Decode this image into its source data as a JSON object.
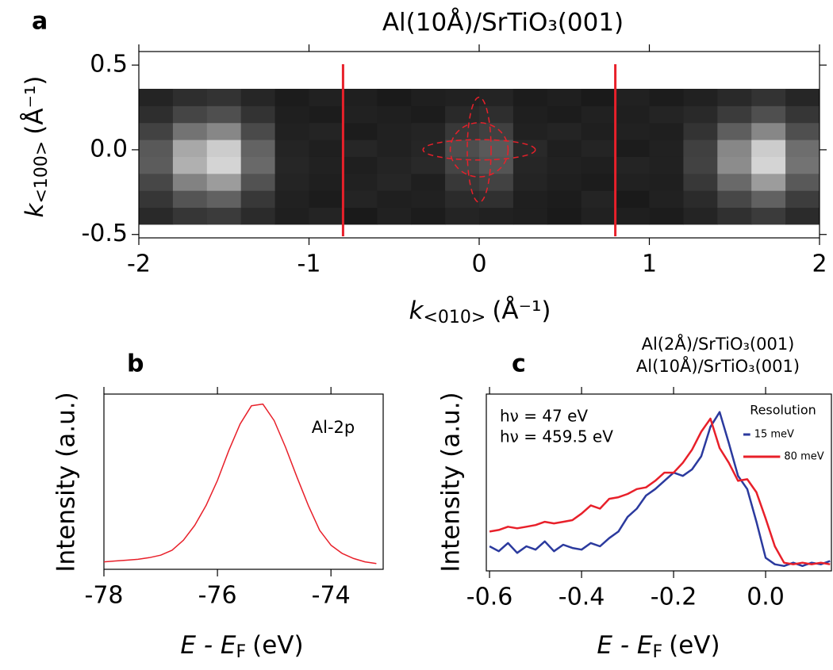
{
  "chart_data": [
    {
      "type": "heatmap",
      "panel_label": "a",
      "title": "Al(10Å)/SrTiO₃(001)",
      "xlabel": {
        "symbol": "k",
        "subscript": "<010>",
        "unit": "(Å⁻¹)"
      },
      "ylabel": {
        "symbol": "k",
        "subscript": "<100>",
        "unit": "(Å⁻¹)"
      },
      "xlim": [
        -2,
        2
      ],
      "ylim": [
        -0.52,
        0.58
      ],
      "xticks": [
        -2,
        -1,
        0,
        1,
        2
      ],
      "yticks": [
        -0.5,
        {
          "value": 0,
          "label": "0.0"
        },
        0.5
      ],
      "xbins": [
        -2,
        -1.8,
        -1.6,
        -1.4,
        -1.2,
        -1,
        -0.8,
        -0.6,
        -0.4,
        -0.2,
        0,
        0.2,
        0.4,
        0.6,
        0.8,
        1,
        1.2,
        1.4,
        1.6,
        1.8,
        2
      ],
      "ybins": [
        -0.44,
        -0.34,
        -0.24,
        -0.14,
        -0.04,
        0.06,
        0.16,
        0.26,
        0.36
      ],
      "zlim": [
        0,
        1
      ],
      "colormap": [
        "#000000",
        "#ffffff"
      ],
      "z": [
        [
          0.16,
          0.21,
          0.23,
          0.17,
          0.12,
          0.14,
          0.1,
          0.13,
          0.11,
          0.14,
          0.13,
          0.12,
          0.1,
          0.13,
          0.12,
          0.11,
          0.14,
          0.19,
          0.23,
          0.17
        ],
        [
          0.21,
          0.33,
          0.38,
          0.22,
          0.13,
          0.11,
          0.14,
          0.12,
          0.13,
          0.17,
          0.19,
          0.12,
          0.11,
          0.14,
          0.1,
          0.13,
          0.17,
          0.28,
          0.38,
          0.24
        ],
        [
          0.28,
          0.51,
          0.61,
          0.32,
          0.14,
          0.12,
          0.13,
          0.15,
          0.12,
          0.22,
          0.26,
          0.14,
          0.12,
          0.11,
          0.13,
          0.12,
          0.22,
          0.41,
          0.61,
          0.35
        ],
        [
          0.36,
          0.69,
          0.83,
          0.41,
          0.15,
          0.13,
          0.12,
          0.14,
          0.16,
          0.27,
          0.33,
          0.15,
          0.13,
          0.12,
          0.14,
          0.13,
          0.26,
          0.55,
          0.83,
          0.45
        ],
        [
          0.35,
          0.66,
          0.8,
          0.39,
          0.14,
          0.12,
          0.15,
          0.13,
          0.15,
          0.3,
          0.35,
          0.16,
          0.12,
          0.14,
          0.11,
          0.13,
          0.25,
          0.53,
          0.8,
          0.43
        ],
        [
          0.26,
          0.45,
          0.53,
          0.29,
          0.13,
          0.14,
          0.11,
          0.13,
          0.14,
          0.22,
          0.25,
          0.13,
          0.14,
          0.12,
          0.13,
          0.12,
          0.2,
          0.37,
          0.53,
          0.31
        ],
        [
          0.18,
          0.27,
          0.31,
          0.2,
          0.12,
          0.11,
          0.13,
          0.12,
          0.11,
          0.16,
          0.18,
          0.12,
          0.11,
          0.13,
          0.12,
          0.14,
          0.16,
          0.23,
          0.31,
          0.21
        ],
        [
          0.14,
          0.18,
          0.2,
          0.15,
          0.11,
          0.13,
          0.12,
          0.1,
          0.12,
          0.13,
          0.14,
          0.11,
          0.12,
          0.1,
          0.13,
          0.11,
          0.13,
          0.16,
          0.2,
          0.15
        ]
      ],
      "vlines": [
        -0.8,
        0.8
      ],
      "vline_color": "#e8202a",
      "contours": [
        {
          "cx": 0,
          "cy": 0,
          "rx": 0.07,
          "ry": 0.31
        },
        {
          "cx": 0,
          "cy": 0,
          "rx": 0.33,
          "ry": 0.06
        },
        {
          "cx": 0,
          "cy": 0,
          "rx": 0.17,
          "ry": 0.16
        }
      ],
      "contour_color": "#e8202a"
    },
    {
      "type": "line",
      "panel_label": "b",
      "xlabel": {
        "symbol": "E - E",
        "subscript": "F",
        "unit": "(eV)"
      },
      "ylabel": "Intensity (a.u.)",
      "annotation": "Al-2p",
      "xlim": [
        -78,
        -73.08
      ],
      "ylim": [
        -0.015,
        1.04
      ],
      "xticks": [
        -78,
        -76,
        -74
      ],
      "x": [
        -78,
        -77.8,
        -77.6,
        -77.4,
        -77.2,
        -77,
        -76.8,
        -76.6,
        -76.4,
        -76.2,
        -76,
        -75.8,
        -75.6,
        -75.4,
        -75.2,
        -75,
        -74.8,
        -74.6,
        -74.4,
        -74.2,
        -74,
        -73.8,
        -73.6,
        -73.4,
        -73.2
      ],
      "series": [
        {
          "color": "#e8202a",
          "values": [
            0.03,
            0.035,
            0.04,
            0.045,
            0.055,
            0.07,
            0.1,
            0.16,
            0.25,
            0.37,
            0.52,
            0.7,
            0.86,
            0.97,
            0.98,
            0.88,
            0.72,
            0.54,
            0.37,
            0.22,
            0.13,
            0.08,
            0.05,
            0.03,
            0.02
          ]
        }
      ]
    },
    {
      "type": "line",
      "panel_label": "c",
      "xlabel": {
        "symbol": "E - E",
        "subscript": "F",
        "unit": "(eV)"
      },
      "ylabel": "Intensity (a.u.)",
      "xlim": [
        -0.607,
        0.143
      ],
      "ylim": [
        0,
        1.08
      ],
      "xticks": [
        -0.6,
        -0.4,
        -0.2,
        {
          "value": 0,
          "label": "0.0"
        }
      ],
      "x": [
        -0.6,
        -0.58,
        -0.56,
        -0.54,
        -0.52,
        -0.5,
        -0.48,
        -0.46,
        -0.44,
        -0.42,
        -0.4,
        -0.38,
        -0.36,
        -0.34,
        -0.32,
        -0.3,
        -0.28,
        -0.26,
        -0.24,
        -0.22,
        -0.2,
        -0.18,
        -0.16,
        -0.14,
        -0.12,
        -0.1,
        -0.08,
        -0.06,
        -0.04,
        -0.02,
        0,
        0.02,
        0.04,
        0.06,
        0.08,
        0.1,
        0.12,
        0.14
      ],
      "series": [
        {
          "name": "Al(2Å)/SrTiO₃(001)",
          "color": "#2b3a9e",
          "values": [
            0.15,
            0.12,
            0.17,
            0.11,
            0.15,
            0.13,
            0.18,
            0.12,
            0.16,
            0.14,
            0.13,
            0.17,
            0.15,
            0.2,
            0.24,
            0.33,
            0.38,
            0.46,
            0.5,
            0.55,
            0.6,
            0.58,
            0.62,
            0.7,
            0.88,
            0.97,
            0.78,
            0.58,
            0.5,
            0.3,
            0.08,
            0.04,
            0.03,
            0.05,
            0.03,
            0.05,
            0.04,
            0.06
          ]
        },
        {
          "name": "Al(10Å)/SrTiO₃(001)",
          "color": "#e8202a",
          "values": [
            0.24,
            0.25,
            0.27,
            0.26,
            0.27,
            0.28,
            0.3,
            0.29,
            0.3,
            0.31,
            0.35,
            0.4,
            0.38,
            0.44,
            0.45,
            0.47,
            0.5,
            0.51,
            0.55,
            0.6,
            0.6,
            0.66,
            0.74,
            0.85,
            0.93,
            0.75,
            0.66,
            0.55,
            0.56,
            0.48,
            0.32,
            0.15,
            0.05,
            0.04,
            0.05,
            0.04,
            0.05,
            0.04
          ]
        }
      ],
      "annotations": [
        {
          "text": "hν = 47 eV",
          "color": "#2b3a9e"
        },
        {
          "text": "hν = 459.5 eV",
          "color": "#e8202a"
        }
      ],
      "resolution": {
        "title": "Resolution",
        "bars": [
          {
            "label": "15 meV",
            "width": 0.015,
            "color": "#2b3a9e"
          },
          {
            "label": "80 meV",
            "width": 0.08,
            "color": "#e8202a"
          }
        ]
      }
    }
  ]
}
